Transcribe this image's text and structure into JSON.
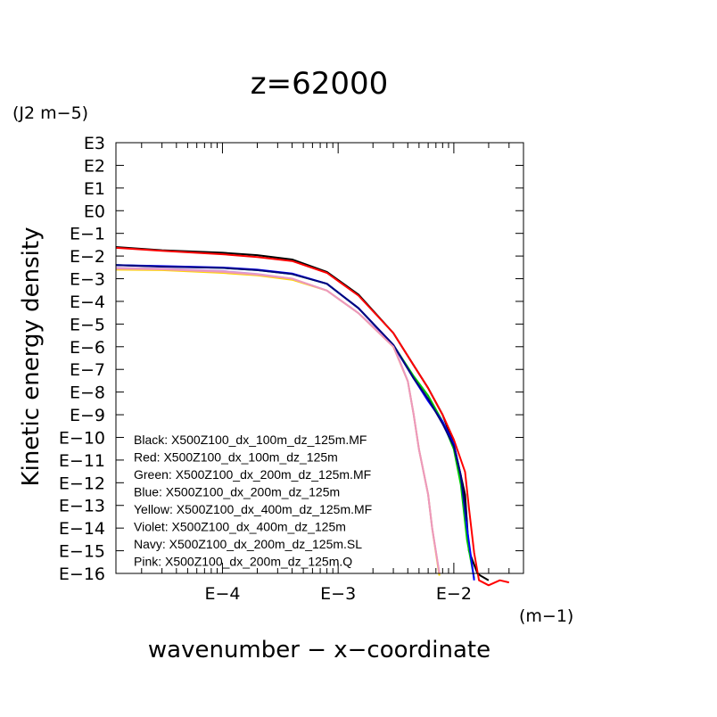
{
  "chart_data": {
    "type": "line",
    "title": "z=62000",
    "xlabel": "wavenumber − x−coordinate",
    "ylabel": "Kinetic energy density",
    "x_unit": "(m−1)",
    "y_unit": "(J2 m−5)",
    "x_scale": "log",
    "y_scale": "log",
    "xlim": [
      1.2e-05,
      0.04
    ],
    "ylim": [
      1e-16,
      1000
    ],
    "x_ticks": [
      {
        "value": 0.0001,
        "label": "E−4"
      },
      {
        "value": 0.001,
        "label": "E−3"
      },
      {
        "value": 0.01,
        "label": "E−2"
      }
    ],
    "y_ticks": [
      {
        "value": 1000.0,
        "label": "E3"
      },
      {
        "value": 100.0,
        "label": "E2"
      },
      {
        "value": 10.0,
        "label": "E1"
      },
      {
        "value": 1.0,
        "label": "E0"
      },
      {
        "value": 0.1,
        "label": "E−1"
      },
      {
        "value": 0.01,
        "label": "E−2"
      },
      {
        "value": 0.001,
        "label": "E−3"
      },
      {
        "value": 0.0001,
        "label": "E−4"
      },
      {
        "value": 1e-05,
        "label": "E−5"
      },
      {
        "value": 1e-06,
        "label": "E−6"
      },
      {
        "value": 1e-07,
        "label": "E−7"
      },
      {
        "value": 1e-08,
        "label": "E−8"
      },
      {
        "value": 1e-09,
        "label": "E−9"
      },
      {
        "value": 1e-10,
        "label": "E−10"
      },
      {
        "value": 1e-11,
        "label": "E−11"
      },
      {
        "value": 1e-12,
        "label": "E−12"
      },
      {
        "value": 1e-13,
        "label": "E−13"
      },
      {
        "value": 1e-14,
        "label": "E−14"
      },
      {
        "value": 1e-15,
        "label": "E−15"
      },
      {
        "value": 1e-16,
        "label": "E−16"
      }
    ],
    "legend": [
      "Black: X500Z100_dx_100m_dz_125m.MF",
      "Red: X500Z100_dx_100m_dz_125m",
      "Green: X500Z100_dx_200m_dz_125m.MF",
      "Blue: X500Z100_dx_200m_dz_125m",
      "Yellow: X500Z100_dx_400m_dz_125m.MF",
      "Violet: X500Z100_dx_400m_dz_125m",
      "Navy: X500Z100_dx_200m_dz_125m.SL",
      "Pink: X500Z100_dx_200m_dz_125m.Q"
    ],
    "legend_position": "bottom-left",
    "grid": false,
    "series": [
      {
        "color": "#000000",
        "x": [
          1.2e-05,
          3e-05,
          0.0001,
          0.0002,
          0.0004,
          0.0008,
          0.0015,
          0.003,
          0.0045,
          0.006,
          0.008,
          0.01,
          0.0125,
          0.0135,
          0.016,
          0.017,
          0.02
        ],
        "y": [
          0.025,
          0.018,
          0.014,
          0.011,
          0.007,
          0.002,
          0.0002,
          4e-06,
          1.5e-07,
          1.5e-08,
          1e-09,
          5e-11,
          3e-13,
          1e-15,
          1e-16,
          8e-17,
          5e-17
        ]
      },
      {
        "color": "#ff0000",
        "x": [
          1.2e-05,
          3e-05,
          0.0001,
          0.0002,
          0.0004,
          0.0008,
          0.0015,
          0.003,
          0.0045,
          0.006,
          0.008,
          0.01,
          0.0125,
          0.0135,
          0.015,
          0.0165,
          0.02,
          0.025,
          0.03
        ],
        "y": [
          0.023,
          0.017,
          0.012,
          0.009,
          0.006,
          0.0018,
          0.00018,
          4e-06,
          1.5e-07,
          1.5e-08,
          1e-09,
          8e-11,
          3e-12,
          8e-14,
          8e-16,
          5e-17,
          3e-17,
          5e-17,
          4e-17
        ]
      },
      {
        "color": "#00cc00",
        "x": [
          1.2e-05,
          3e-05,
          0.0001,
          0.0002,
          0.0004,
          0.0008,
          0.0015,
          0.003,
          0.0045,
          0.006,
          0.008,
          0.01,
          0.0115,
          0.013,
          0.015
        ],
        "y": [
          0.004,
          0.0035,
          0.003,
          0.0024,
          0.0016,
          0.0006,
          5e-05,
          1.2e-06,
          5e-08,
          7e-09,
          5e-10,
          3e-11,
          8e-13,
          3e-15,
          6e-17
        ]
      },
      {
        "color": "#0000ff",
        "x": [
          1.2e-05,
          3e-05,
          0.0001,
          0.0002,
          0.0004,
          0.0008,
          0.0015,
          0.003,
          0.0045,
          0.006,
          0.008,
          0.01,
          0.0115,
          0.013,
          0.015
        ],
        "y": [
          0.004,
          0.0036,
          0.0031,
          0.0025,
          0.0017,
          0.0006,
          5e-05,
          1.2e-06,
          4e-08,
          4e-09,
          5e-10,
          5e-11,
          2e-12,
          1e-14,
          5e-17
        ]
      },
      {
        "color": "#ffd700",
        "x": [
          1.2e-05,
          3e-05,
          0.0001,
          0.0002,
          0.0004,
          0.0008,
          0.0015,
          0.003,
          0.004,
          0.0045,
          0.005,
          0.006,
          0.0065,
          0.0075
        ],
        "y": [
          0.0025,
          0.0024,
          0.0018,
          0.0014,
          0.0009,
          0.0003,
          3e-05,
          1e-06,
          3e-08,
          1e-09,
          3e-11,
          3e-13,
          1e-14,
          8e-17
        ]
      },
      {
        "color": "#cc99dd",
        "x": [
          1.2e-05,
          3e-05,
          0.0001,
          0.0002,
          0.0004,
          0.0008,
          0.0015,
          0.003,
          0.004,
          0.0045,
          0.005,
          0.006,
          0.0065,
          0.0075
        ],
        "y": [
          0.003,
          0.0028,
          0.0022,
          0.0016,
          0.001,
          0.0003,
          3e-05,
          1.2e-06,
          3e-08,
          1e-09,
          3e-11,
          3e-13,
          1e-14,
          1e-16
        ]
      },
      {
        "color": "#000080",
        "x": [
          1.2e-05,
          3e-05,
          0.0001,
          0.0002,
          0.0004,
          0.0008,
          0.0015,
          0.003,
          0.0045,
          0.006,
          0.008,
          0.01,
          0.0115,
          0.013
        ],
        "y": [
          0.004,
          0.0034,
          0.003,
          0.0024,
          0.0016,
          0.0006,
          5e-05,
          1.2e-06,
          4e-08,
          5e-09,
          4e-10,
          4e-11,
          2e-12,
          2e-14
        ]
      },
      {
        "color": "#ee99bb",
        "x": [
          1.2e-05,
          3e-05,
          0.0001,
          0.0002,
          0.0004,
          0.0008,
          0.0015,
          0.003,
          0.004,
          0.0045,
          0.005,
          0.006,
          0.0065,
          0.0075
        ],
        "y": [
          0.0028,
          0.0026,
          0.002,
          0.0015,
          0.001,
          0.0003,
          3e-05,
          1e-06,
          3e-08,
          1e-09,
          3e-11,
          3e-13,
          1e-14,
          1e-16
        ]
      }
    ]
  }
}
